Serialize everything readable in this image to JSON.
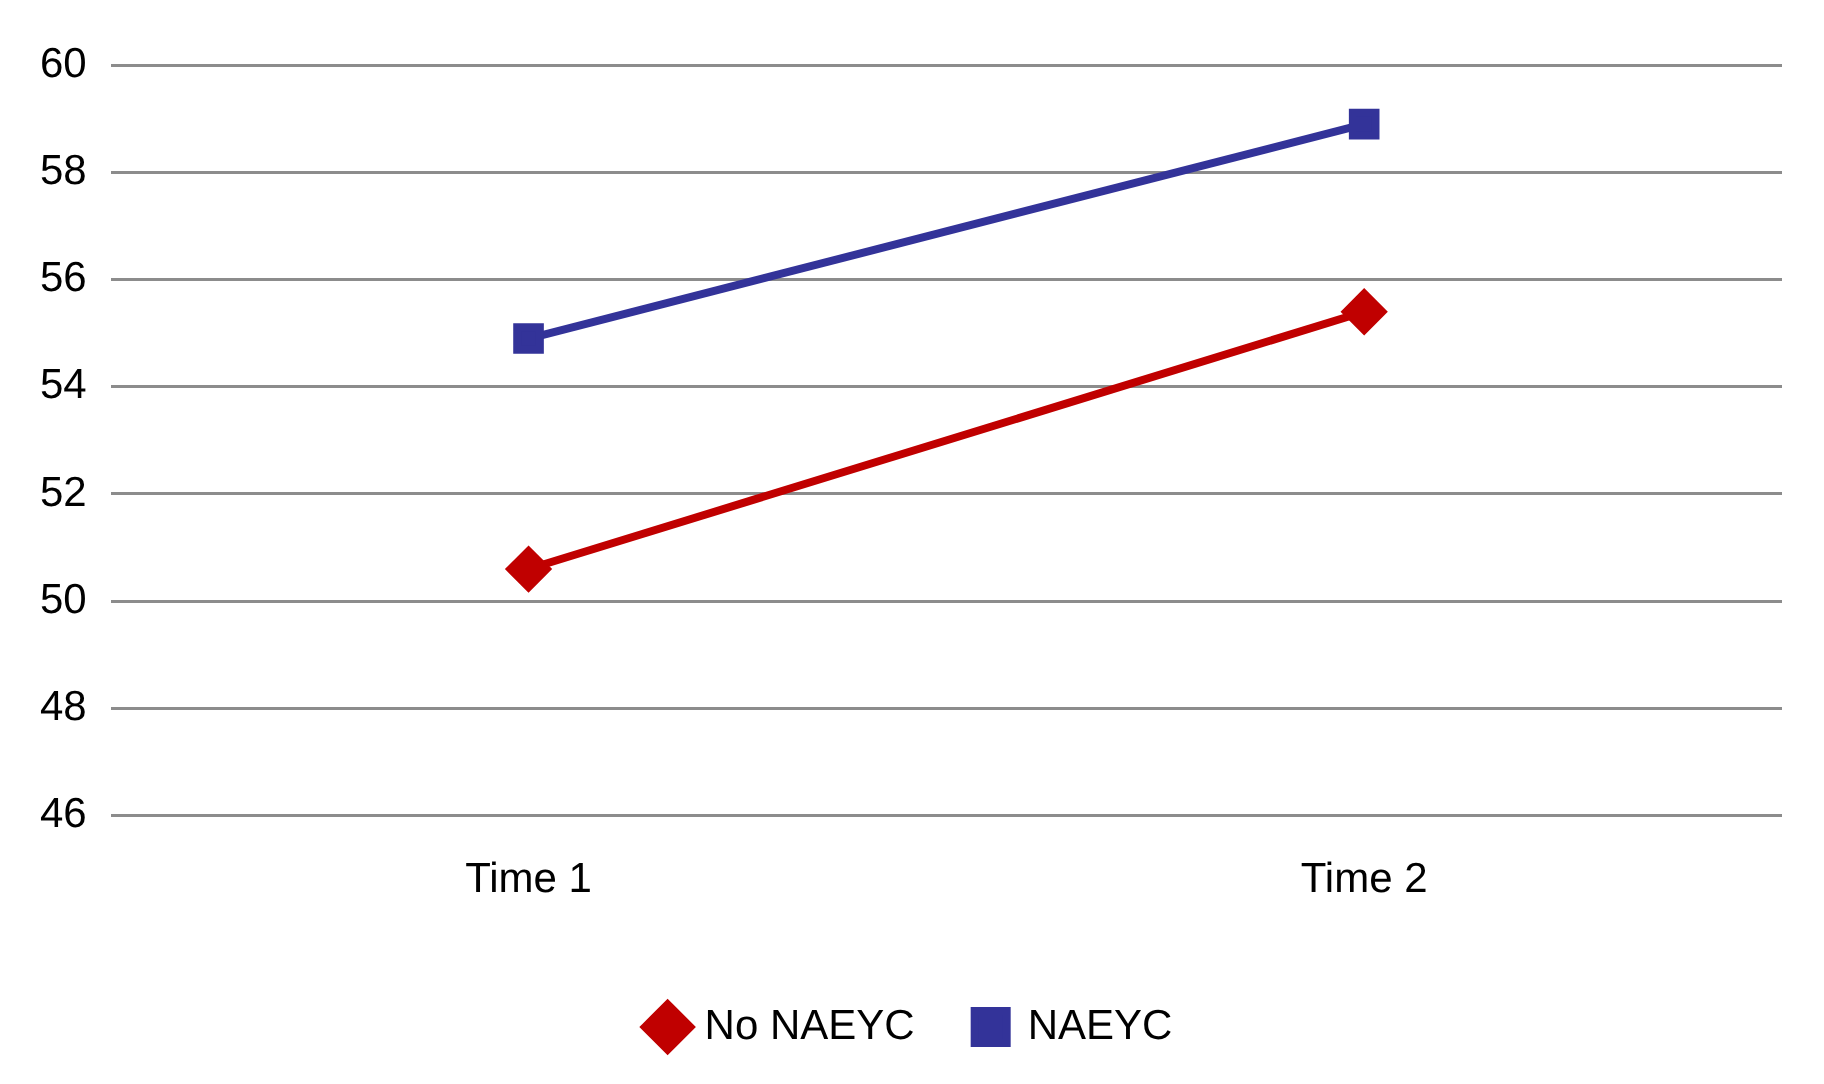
{
  "chart_data": {
    "type": "line",
    "categories": [
      "Time 1",
      "Time 2"
    ],
    "series": [
      {
        "name": "No NAEYC",
        "color": "#c00000",
        "values": [
          50.6,
          55.4
        ],
        "marker": "diamond"
      },
      {
        "name": "NAEYC",
        "color": "#333399",
        "values": [
          54.9,
          58.9
        ],
        "marker": "square"
      }
    ],
    "ylim": [
      46,
      60
    ],
    "yticks": [
      46,
      48,
      50,
      52,
      54,
      56,
      58,
      60
    ],
    "grid": "y",
    "legend": "bottom",
    "line_style": "solid"
  }
}
